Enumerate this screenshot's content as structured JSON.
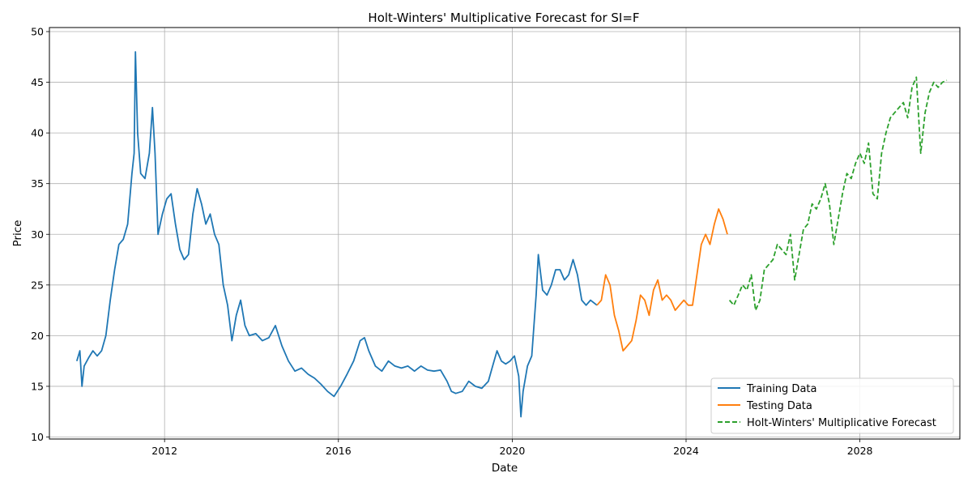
{
  "chart_data": {
    "type": "line",
    "title": "Holt-Winters' Multiplicative Forecast for SI=F",
    "xlabel": "Date",
    "ylabel": "Price",
    "xlim": [
      2009.35,
      2030.3
    ],
    "ylim": [
      9.8,
      50.4
    ],
    "x_ticks": [
      {
        "value": 2012,
        "label": "2012"
      },
      {
        "value": 2016,
        "label": "2016"
      },
      {
        "value": 2020,
        "label": "2020"
      },
      {
        "value": 2024,
        "label": "2024"
      },
      {
        "value": 2028,
        "label": "2028"
      }
    ],
    "y_ticks": [
      {
        "value": 10,
        "label": "10"
      },
      {
        "value": 15,
        "label": "15"
      },
      {
        "value": 20,
        "label": "20"
      },
      {
        "value": 25,
        "label": "25"
      },
      {
        "value": 30,
        "label": "30"
      },
      {
        "value": 35,
        "label": "35"
      },
      {
        "value": 40,
        "label": "40"
      },
      {
        "value": 45,
        "label": "45"
      },
      {
        "value": 50,
        "label": "50"
      }
    ],
    "grid": true,
    "legend_position": "lower-right",
    "series": [
      {
        "name": "Training Data",
        "color": "#1f77b4",
        "style": "solid",
        "x": [
          2009.98,
          2010.05,
          2010.1,
          2010.15,
          2010.25,
          2010.35,
          2010.45,
          2010.55,
          2010.65,
          2010.75,
          2010.85,
          2010.95,
          2011.05,
          2011.15,
          2011.25,
          2011.3,
          2011.33,
          2011.38,
          2011.45,
          2011.55,
          2011.65,
          2011.72,
          2011.78,
          2011.85,
          2011.95,
          2012.05,
          2012.15,
          2012.25,
          2012.35,
          2012.45,
          2012.55,
          2012.65,
          2012.75,
          2012.85,
          2012.95,
          2013.05,
          2013.15,
          2013.25,
          2013.35,
          2013.45,
          2013.55,
          2013.65,
          2013.75,
          2013.85,
          2013.95,
          2014.1,
          2014.25,
          2014.4,
          2014.55,
          2014.7,
          2014.85,
          2015.0,
          2015.15,
          2015.3,
          2015.45,
          2015.6,
          2015.75,
          2015.9,
          2016.05,
          2016.2,
          2016.35,
          2016.5,
          2016.6,
          2016.7,
          2016.85,
          2017.0,
          2017.15,
          2017.3,
          2017.45,
          2017.6,
          2017.75,
          2017.9,
          2018.05,
          2018.2,
          2018.35,
          2018.5,
          2018.6,
          2018.7,
          2018.85,
          2019.0,
          2019.15,
          2019.3,
          2019.45,
          2019.55,
          2019.65,
          2019.75,
          2019.85,
          2019.95,
          2020.05,
          2020.15,
          2020.2,
          2020.25,
          2020.35,
          2020.45,
          2020.55,
          2020.6,
          2020.7,
          2020.8,
          2020.9,
          2021.0,
          2021.1,
          2021.2,
          2021.3,
          2021.4,
          2021.5,
          2021.6,
          2021.7,
          2021.8,
          2021.95
        ],
        "y": [
          17.5,
          18.5,
          15.0,
          17.0,
          17.8,
          18.5,
          18.0,
          18.5,
          20.0,
          23.5,
          26.5,
          29.0,
          29.5,
          31.0,
          36.0,
          38.0,
          48.0,
          40.0,
          36.0,
          35.5,
          38.0,
          42.5,
          38.0,
          30.0,
          32.0,
          33.5,
          34.0,
          31.0,
          28.5,
          27.5,
          28.0,
          32.0,
          34.5,
          33.0,
          31.0,
          32.0,
          30.0,
          29.0,
          25.0,
          23.0,
          19.5,
          22.0,
          23.5,
          21.0,
          20.0,
          20.2,
          19.5,
          19.8,
          21.0,
          19.0,
          17.5,
          16.5,
          16.8,
          16.2,
          15.8,
          15.2,
          14.5,
          14.0,
          15.0,
          16.2,
          17.5,
          19.5,
          19.8,
          18.5,
          17.0,
          16.5,
          17.5,
          17.0,
          16.8,
          17.0,
          16.5,
          17.0,
          16.6,
          16.5,
          16.6,
          15.5,
          14.5,
          14.3,
          14.5,
          15.5,
          15.0,
          14.8,
          15.5,
          17.0,
          18.5,
          17.5,
          17.2,
          17.5,
          18.0,
          16.0,
          12.0,
          14.5,
          17.0,
          18.0,
          24.0,
          28.0,
          24.5,
          24.0,
          25.0,
          26.5,
          26.5,
          25.5,
          26.0,
          27.5,
          26.0,
          23.5,
          23.0,
          23.5,
          23.0
        ]
      },
      {
        "name": "Testing Data",
        "color": "#ff7f0e",
        "style": "solid",
        "x": [
          2021.95,
          2022.05,
          2022.15,
          2022.25,
          2022.35,
          2022.45,
          2022.55,
          2022.65,
          2022.75,
          2022.85,
          2022.95,
          2023.05,
          2023.15,
          2023.25,
          2023.35,
          2023.45,
          2023.55,
          2023.65,
          2023.75,
          2023.85,
          2023.95,
          2024.05,
          2024.15,
          2024.25,
          2024.35,
          2024.45,
          2024.55,
          2024.65,
          2024.75,
          2024.85,
          2024.95
        ],
        "y": [
          23.0,
          23.5,
          26.0,
          25.0,
          22.0,
          20.5,
          18.5,
          19.0,
          19.5,
          21.5,
          24.0,
          23.5,
          22.0,
          24.5,
          25.5,
          23.5,
          24.0,
          23.5,
          22.5,
          23.0,
          23.5,
          23.0,
          23.0,
          26.0,
          29.0,
          30.0,
          29.0,
          31.0,
          32.5,
          31.5,
          30.0
        ]
      },
      {
        "name": "Holt-Winters' Multiplicative Forecast",
        "color": "#2ca02c",
        "style": "dashed",
        "x": [
          2025.0,
          2025.1,
          2025.2,
          2025.3,
          2025.4,
          2025.5,
          2025.6,
          2025.7,
          2025.8,
          2025.9,
          2026.0,
          2026.1,
          2026.2,
          2026.3,
          2026.4,
          2026.5,
          2026.6,
          2026.7,
          2026.8,
          2026.9,
          2027.0,
          2027.1,
          2027.2,
          2027.3,
          2027.4,
          2027.5,
          2027.6,
          2027.7,
          2027.8,
          2027.9,
          2028.0,
          2028.1,
          2028.2,
          2028.3,
          2028.4,
          2028.5,
          2028.6,
          2028.7,
          2028.8,
          2028.9,
          2029.0,
          2029.1,
          2029.2,
          2029.3,
          2029.4,
          2029.5,
          2029.6,
          2029.7,
          2029.8,
          2029.9,
          2030.0
        ],
        "y": [
          23.5,
          23.0,
          24.0,
          25.0,
          24.5,
          26.0,
          22.5,
          23.5,
          26.5,
          27.0,
          27.5,
          29.0,
          28.5,
          28.0,
          30.0,
          25.5,
          28.0,
          30.5,
          31.0,
          33.0,
          32.5,
          33.5,
          35.0,
          33.0,
          29.0,
          31.5,
          34.0,
          36.0,
          35.5,
          37.0,
          38.0,
          37.0,
          39.0,
          34.0,
          33.5,
          38.0,
          40.0,
          41.5,
          42.0,
          42.5,
          43.0,
          41.5,
          44.5,
          45.5,
          38.0,
          42.0,
          44.0,
          45.0,
          44.5,
          45.0,
          45.2
        ]
      }
    ]
  }
}
